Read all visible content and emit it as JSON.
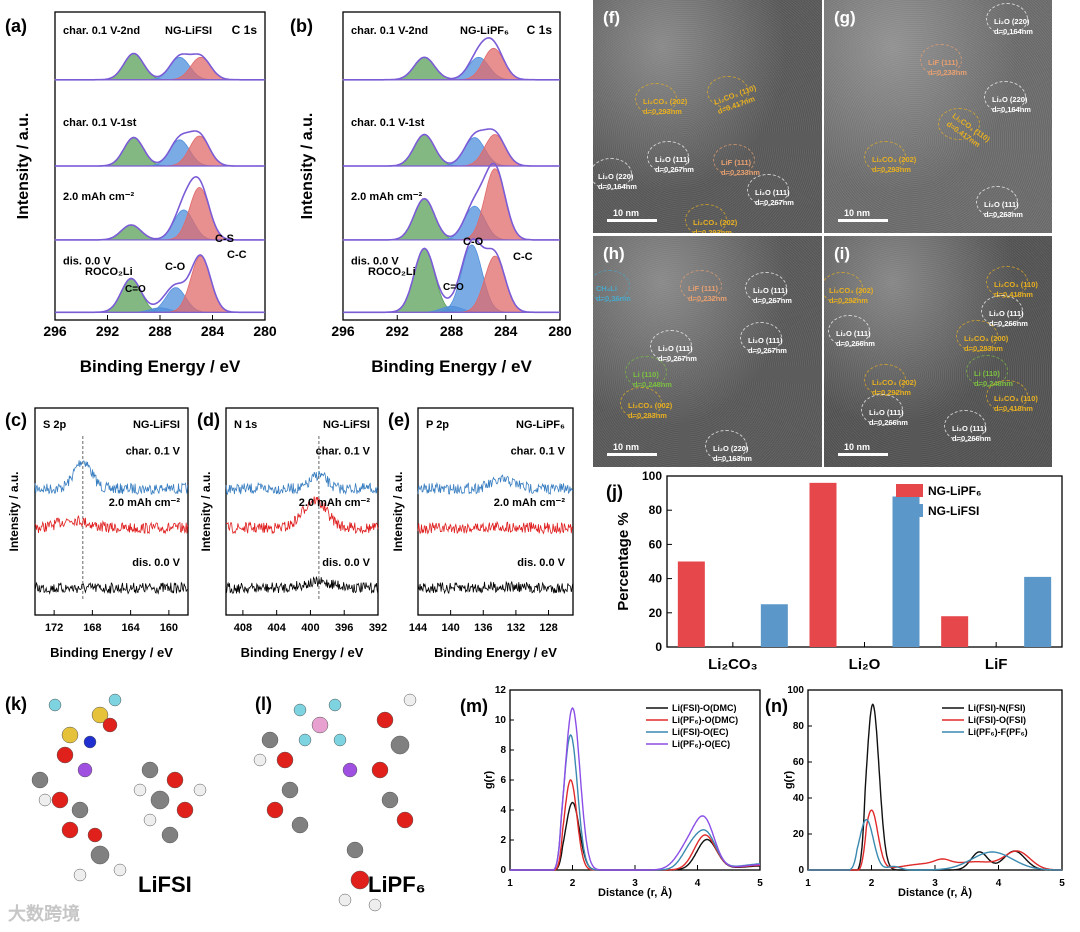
{
  "colors": {
    "green": "#5aa05a",
    "blue": "#4f8fdc",
    "red": "#e06a6a",
    "envelope": "#7b5cd6",
    "spec_blue": "#3a7fc1",
    "spec_red": "#e02020",
    "spec_black": "#000000",
    "bar_red": "#e5474b",
    "bar_blue": "#5b97c9"
  },
  "tem": {
    "f": {
      "label": "(f)",
      "scale": "10 nm",
      "labels": [
        "Li₂CO₃ (202)\nd=0.293nm",
        "Li₂CO₃ (110)\nd=0.417nm",
        "Li₂O (111)\nd=0.267nm",
        "Li₂O (220)\nd=0.164nm",
        "LiF (111)\nd=0.233nm",
        "Li₂O (111)\nd=0.267nm",
        "Li₂CO₃ (202)\nd=0.293nm"
      ]
    },
    "g": {
      "label": "(g)",
      "scale": "10 nm",
      "labels": [
        "Li₂O (220)\nd=0.164nm",
        "LiF (111)\nd=0.233nm",
        "Li₂O (220)\nd=0.164nm",
        "Li₂CO₃ (110)\nd=0.417nm",
        "Li₂CO₃ (202)\nd=0.293nm",
        "Li₂O (111)\nd=0.263nm"
      ]
    },
    "h": {
      "label": "(h)",
      "scale": "10 nm",
      "labels": [
        "CH₃Li\nd=0.36nm",
        "LiF (111)\nd=0.232nm",
        "Li₂O (111)\nd=0.267nm",
        "Li₂O (111)\nd=0.267nm",
        "Li₂O (111)\nd=0.267nm",
        "Li (110)\nd=0.248nm",
        "Li₂CO₃ (002)\nd=0.283nm",
        "Li₂O (220)\nd=0.163nm"
      ]
    },
    "i": {
      "label": "(i)",
      "scale": "10 nm",
      "labels": [
        "Li₂CO₃ (202)\nd=0.292nm",
        "Li₂CO₃ (110)\nd=0.418nm",
        "Li₂O (111)\nd=0.266nm",
        "Li₂O (111)\nd=0.266nm",
        "Li₂CO₃ (200)\nd=0.283nm",
        "Li₂CO₃ (202)\nd=0.292nm",
        "Li (110)\nd=0.248nm",
        "Li₂CO₃ (110)\nd=0.418nm",
        "Li₂O (111)\nd=0.266nm",
        "Li₂O (111)\nd=0.266nm"
      ]
    }
  },
  "molecules": {
    "k": {
      "label": "(k)",
      "name": "LiFSI"
    },
    "l": {
      "label": "(l)",
      "name": "LiPF₆"
    }
  },
  "watermark": "大数跨境",
  "chart_data": [
    {
      "panel": "(a)",
      "type": "line",
      "core": "C 1s",
      "sample": "NG-LiFSI",
      "xlabel": "Binding Energy / eV",
      "ylabel": "Intensity / a.u.",
      "xlim": [
        296,
        280
      ],
      "xticks": [
        296,
        292,
        288,
        284,
        280
      ],
      "series": [
        {
          "name": "char. 0.1 V-2nd",
          "components": [
            {
              "name": "ROCO₂Li",
              "center": 290.0,
              "height": 0.35,
              "color": "green"
            },
            {
              "name": "C-O",
              "center": 286.5,
              "height": 0.3,
              "color": "blue"
            },
            {
              "name": "C-C",
              "center": 284.9,
              "height": 0.3,
              "color": "red"
            }
          ]
        },
        {
          "name": "char. 0.1 V-1st",
          "components": [
            {
              "name": "ROCO₂Li",
              "center": 290.0,
              "height": 0.38,
              "color": "green"
            },
            {
              "name": "C-O",
              "center": 286.5,
              "height": 0.35,
              "color": "blue"
            },
            {
              "name": "C-C",
              "center": 285.0,
              "height": 0.4,
              "color": "red"
            }
          ]
        },
        {
          "name": "2.0 mAh cm⁻²",
          "components": [
            {
              "name": "ROCO₂Li",
              "center": 290.2,
              "height": 0.2,
              "color": "green"
            },
            {
              "name": "C-O",
              "center": 286.2,
              "height": 0.4,
              "color": "blue"
            },
            {
              "name": "C-C",
              "center": 285.0,
              "height": 0.7,
              "color": "red"
            }
          ]
        },
        {
          "name": "dis. 0.0 V",
          "components": [
            {
              "name": "ROCO₂Li",
              "center": 290.2,
              "height": 0.45,
              "color": "green"
            },
            {
              "name": "C=O",
              "center": 288.0,
              "height": 0.06,
              "color": "blue"
            },
            {
              "name": "C-O",
              "center": 286.8,
              "height": 0.33,
              "color": "blue"
            },
            {
              "name": "C-C",
              "center": 284.9,
              "height": 0.75,
              "color": "red"
            }
          ]
        }
      ],
      "annotations": [
        "C-S",
        "ROCO₂Li",
        "C=O",
        "C-O",
        "C-C"
      ]
    },
    {
      "panel": "(b)",
      "type": "line",
      "core": "C 1s",
      "sample": "NG-LiPF₆",
      "xlabel": "Binding Energy / eV",
      "ylabel": "Intensity / a.u.",
      "xlim": [
        296,
        280
      ],
      "xticks": [
        296,
        292,
        288,
        284,
        280
      ],
      "series": [
        {
          "name": "char. 0.1 V-2nd",
          "components": [
            {
              "name": "ROCO₂Li",
              "center": 290.0,
              "height": 0.3,
              "color": "green"
            },
            {
              "name": "C-O",
              "center": 286.0,
              "height": 0.3,
              "color": "blue"
            },
            {
              "name": "C-C",
              "center": 284.9,
              "height": 0.42,
              "color": "red"
            }
          ]
        },
        {
          "name": "char. 0.1 V-1st",
          "components": [
            {
              "name": "ROCO₂Li",
              "center": 290.0,
              "height": 0.42,
              "color": "green"
            },
            {
              "name": "C-O",
              "center": 286.3,
              "height": 0.38,
              "color": "blue"
            },
            {
              "name": "C-C",
              "center": 284.8,
              "height": 0.42,
              "color": "red"
            }
          ]
        },
        {
          "name": "2.0 mAh cm⁻²",
          "components": [
            {
              "name": "ROCO₂Li",
              "center": 290.0,
              "height": 0.55,
              "color": "green"
            },
            {
              "name": "C-O",
              "center": 286.3,
              "height": 0.45,
              "color": "blue"
            },
            {
              "name": "C-C",
              "center": 284.8,
              "height": 0.95,
              "color": "red"
            }
          ]
        },
        {
          "name": "dis. 0.0 V",
          "components": [
            {
              "name": "ROCO₂Li",
              "center": 290.0,
              "height": 0.85,
              "color": "green"
            },
            {
              "name": "C=O",
              "center": 288.0,
              "height": 0.08,
              "color": "blue"
            },
            {
              "name": "C-O",
              "center": 286.5,
              "height": 0.9,
              "color": "blue"
            },
            {
              "name": "C-C",
              "center": 284.8,
              "height": 0.75,
              "color": "red"
            }
          ]
        }
      ],
      "annotations": [
        "ROCO₂Li",
        "C=O",
        "C-O",
        "C-C"
      ]
    },
    {
      "panel": "(c)",
      "type": "line",
      "core": "S 2p",
      "sample": "NG-LiFSI",
      "xlabel": "Binding Energy / eV",
      "ylabel": "Intensity / a.u.",
      "xlim": [
        174,
        158
      ],
      "xticks": [
        172,
        168,
        164,
        160
      ],
      "marker": 169,
      "series": [
        {
          "name": "char. 0.1 V",
          "color": "spec_blue",
          "peak_center": 169,
          "peak_height": 1.0,
          "peak_width": 0.9
        },
        {
          "name": "2.0 mAh cm⁻²",
          "color": "spec_red",
          "peak_center": 170,
          "peak_height": 0.3,
          "peak_width": 1.5
        },
        {
          "name": "dis. 0.0 V",
          "color": "spec_black",
          "peak_center": 169,
          "peak_height": 0.0,
          "peak_width": 1
        }
      ]
    },
    {
      "panel": "(d)",
      "type": "line",
      "core": "N 1s",
      "sample": "NG-LiFSI",
      "xlabel": "Binding Energy / eV",
      "ylabel": "Intensity / a.u.",
      "xlim": [
        410,
        392
      ],
      "xticks": [
        408,
        404,
        400,
        396,
        392
      ],
      "marker": 399,
      "series": [
        {
          "name": "char. 0.1 V",
          "color": "spec_blue",
          "peak_center": 399,
          "peak_height": 0.5,
          "peak_width": 0.9
        },
        {
          "name": "2.0 mAh cm⁻²",
          "color": "spec_red",
          "peak_center": 399.5,
          "peak_height": 1.0,
          "peak_width": 1.4
        },
        {
          "name": "dis. 0.0 V",
          "color": "spec_black",
          "peak_center": 399,
          "peak_height": 0.2,
          "peak_width": 2
        }
      ]
    },
    {
      "panel": "(e)",
      "type": "line",
      "core": "P 2p",
      "sample": "NG-LiPF₆",
      "xlabel": "Binding Energy / eV",
      "ylabel": "Intensity / a.u.",
      "xlim": [
        144,
        125
      ],
      "xticks": [
        144,
        140,
        136,
        132,
        128
      ],
      "series": [
        {
          "name": "char. 0.1 V",
          "color": "spec_blue",
          "peak_center": 133.5,
          "peak_height": 0.3,
          "peak_width": 1.5
        },
        {
          "name": "2.0 mAh cm⁻²",
          "color": "spec_red",
          "peak_center": 134,
          "peak_height": 0.05,
          "peak_width": 2
        },
        {
          "name": "dis. 0.0 V",
          "color": "spec_black",
          "peak_center": 134,
          "peak_height": 0.05,
          "peak_width": 2
        }
      ]
    },
    {
      "panel": "(j)",
      "type": "bar",
      "ylabel": "Percentage %",
      "ylim": [
        0,
        100
      ],
      "yticks": [
        0,
        20,
        40,
        60,
        80,
        100
      ],
      "categories": [
        "Li₂CO₃",
        "Li₂O",
        "LiF"
      ],
      "legend": "top-right",
      "series": [
        {
          "name": "NG-LiPF₆",
          "color": "bar_red",
          "values": [
            50,
            96,
            18
          ]
        },
        {
          "name": "NG-LiFSI",
          "color": "bar_blue",
          "values": [
            25,
            88,
            41
          ]
        }
      ]
    },
    {
      "panel": "(m)",
      "type": "line",
      "xlabel": "Distance (r, Å)",
      "ylabel": "g(r)",
      "xlim": [
        1,
        5
      ],
      "ylim": [
        0,
        12
      ],
      "xticks": [
        1,
        2,
        3,
        4,
        5
      ],
      "yticks": [
        0,
        2,
        4,
        6,
        8,
        10,
        12
      ],
      "legend": "top-right",
      "series": [
        {
          "name": "Li(FSI)-O(DMC)",
          "color": "#111111",
          "onset": 1.72,
          "peaks": [
            [
              2.0,
              4.5,
              0.11
            ],
            [
              4.15,
              2.0,
              0.16
            ],
            [
              5.2,
              0.3,
              0.5
            ]
          ]
        },
        {
          "name": "Li(PF₆)-O(DMC)",
          "color": "#e02a2a",
          "onset": 1.72,
          "peaks": [
            [
              1.97,
              6.0,
              0.1
            ],
            [
              4.12,
              2.3,
              0.17
            ],
            [
              5.2,
              0.35,
              0.5
            ]
          ]
        },
        {
          "name": "Li(FSI)-O(EC)",
          "color": "#3a8ab0",
          "onset": 1.7,
          "peaks": [
            [
              1.97,
              9.0,
              0.11
            ],
            [
              3.88,
              1.2,
              0.15
            ],
            [
              4.14,
              2.3,
              0.16
            ],
            [
              5.2,
              0.45,
              0.5
            ]
          ]
        },
        {
          "name": "Li(PF₆)-O(EC)",
          "color": "#8b4fe6",
          "onset": 1.7,
          "peaks": [
            [
              2.0,
              10.8,
              0.12
            ],
            [
              3.85,
              1.5,
              0.18
            ],
            [
              4.12,
              3.0,
              0.16
            ],
            [
              5.2,
              0.4,
              0.5
            ]
          ]
        }
      ]
    },
    {
      "panel": "(n)",
      "type": "line",
      "xlabel": "Distance (r, Å)",
      "ylabel": "g(r)",
      "xlim": [
        1,
        5
      ],
      "ylim": [
        0,
        100
      ],
      "xticks": [
        1,
        2,
        3,
        4,
        5
      ],
      "yticks": [
        0,
        20,
        40,
        60,
        80,
        100
      ],
      "legend": "top-right",
      "series": [
        {
          "name": "Li(FSI)-N(FSI)",
          "color": "#111111",
          "onset": 1.78,
          "peaks": [
            [
              2.02,
              92,
              0.1
            ],
            [
              3.7,
              10,
              0.13
            ],
            [
              4.25,
              10.5,
              0.17
            ]
          ]
        },
        {
          "name": "Li(FSI)-O(FSI)",
          "color": "#e02a2a",
          "onset": 1.8,
          "peaks": [
            [
              2.0,
              33,
              0.1
            ],
            [
              2.9,
              3.5,
              0.4
            ],
            [
              3.12,
              2.5,
              0.12
            ],
            [
              3.7,
              4,
              0.3
            ],
            [
              4.3,
              10,
              0.2
            ]
          ]
        },
        {
          "name": "Li(PF₆)-F(PF₆)",
          "color": "#3a8ab0",
          "onset": 1.65,
          "peaks": [
            [
              1.92,
              28,
              0.11
            ],
            [
              2.35,
              2,
              0.1
            ],
            [
              3.9,
              10,
              0.32
            ]
          ]
        }
      ]
    }
  ]
}
